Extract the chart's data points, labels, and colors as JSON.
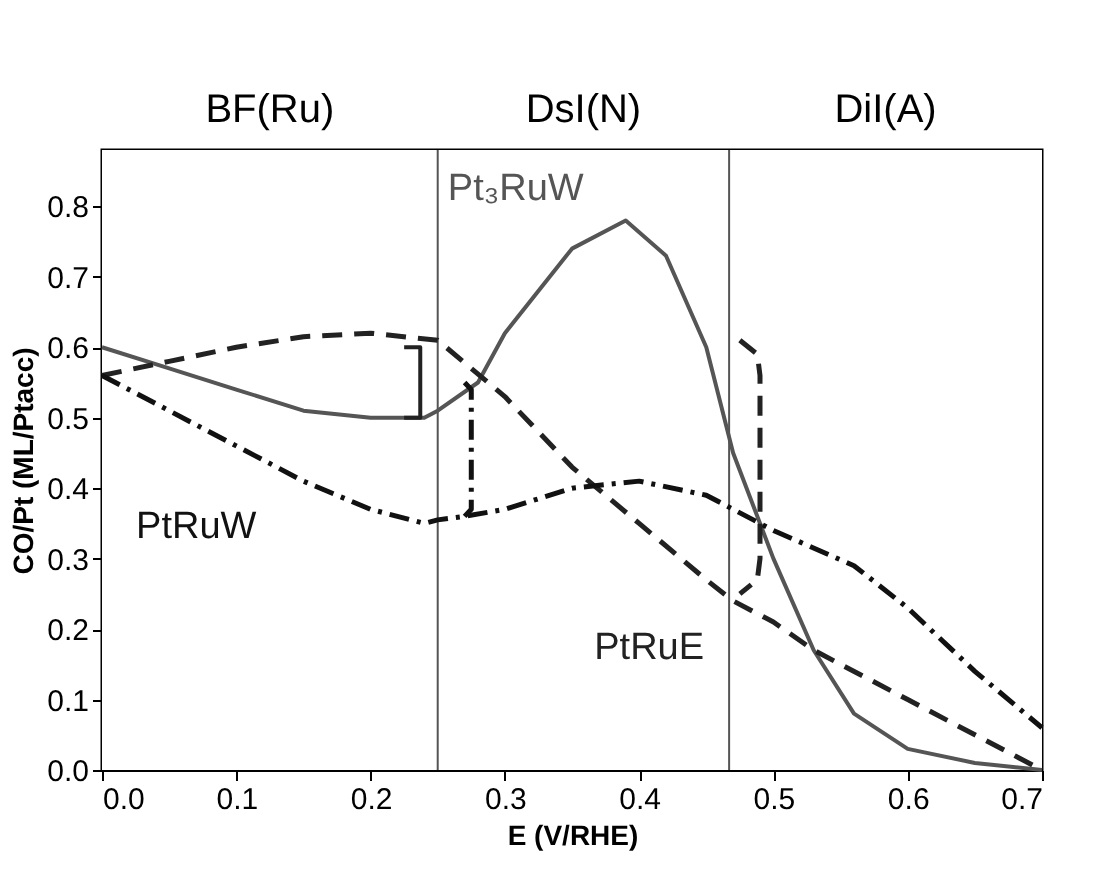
{
  "chart_data": {
    "type": "line",
    "xlabel": "E (V/RHE)",
    "ylabel": "CO/Pt (ML/Ptacc)",
    "xlim": [
      0,
      0.7
    ],
    "xticks": [
      {
        "value": 0,
        "label": "0.0"
      },
      0.1,
      0.2,
      0.3,
      0.4,
      0.5,
      0.6,
      0.7
    ],
    "ylim": [
      0,
      0.88
    ],
    "yticks": [
      {
        "value": 0,
        "label": "0.0"
      },
      0.1,
      0.2,
      0.3,
      0.4,
      0.5,
      0.6,
      0.7,
      0.8
    ],
    "grid": false,
    "marker": "none",
    "series": [
      {
        "name": "Pt₃RuW",
        "color": "#555555",
        "line_style": "solid",
        "x": [
          0,
          0.05,
          0.1,
          0.15,
          0.2,
          0.24,
          0.25,
          0.28,
          0.3,
          0.35,
          0.39,
          0.42,
          0.45,
          0.47,
          0.5,
          0.53,
          0.56,
          0.6,
          0.65,
          0.7
        ],
        "values": [
          0.6,
          0.57,
          0.54,
          0.51,
          0.5,
          0.5,
          0.51,
          0.55,
          0.62,
          0.74,
          0.78,
          0.73,
          0.6,
          0.45,
          0.3,
          0.17,
          0.08,
          0.03,
          0.01,
          0
        ]
      },
      {
        "name": "PtRuE",
        "color": "#222222",
        "line_style": "dashed",
        "x": [
          0,
          0.05,
          0.1,
          0.15,
          0.2,
          0.25,
          0.3,
          0.35,
          0.4,
          0.45,
          0.47,
          0.5,
          0.53,
          0.6,
          0.65,
          0.7
        ],
        "values": [
          0.56,
          0.58,
          0.6,
          0.615,
          0.62,
          0.61,
          0.53,
          0.43,
          0.35,
          0.27,
          0.24,
          0.21,
          0.17,
          0.1,
          0.05,
          0
        ]
      },
      {
        "name": "PtRuW",
        "color": "#111111",
        "line_style": "dashdot",
        "x": [
          0,
          0.05,
          0.1,
          0.15,
          0.2,
          0.24,
          0.25,
          0.27,
          0.3,
          0.35,
          0.4,
          0.45,
          0.5,
          0.56,
          0.6,
          0.65,
          0.7
        ],
        "values": [
          0.56,
          0.51,
          0.46,
          0.41,
          0.37,
          0.35,
          0.355,
          0.36,
          0.37,
          0.4,
          0.41,
          0.39,
          0.34,
          0.29,
          0.23,
          0.14,
          0.06
        ]
      },
      {
        "color": "#222222",
        "line_style": "solid",
        "x": [
          0.225,
          0.237,
          0.237,
          0.225
        ],
        "values": [
          0.6,
          0.6,
          0.5,
          0.5
        ]
      },
      {
        "color": "#222222",
        "line_style": "dashed",
        "x": [
          0.475,
          0.488,
          0.49,
          0.49,
          0.488,
          0.475
        ],
        "values": [
          0.61,
          0.59,
          0.56,
          0.3,
          0.27,
          0.25
        ]
      },
      {
        "color": "#111111",
        "line_style": "dashdot",
        "x": [
          0.27,
          0.275,
          0.275,
          0.27
        ],
        "values": [
          0.55,
          0.54,
          0.37,
          0.36
        ]
      }
    ],
    "ref_lines": [
      {
        "axis": "x",
        "value": 0.25,
        "color": "#555555"
      },
      {
        "axis": "x",
        "value": 0.467,
        "color": "#555555"
      }
    ],
    "bands": [
      {
        "axis": "x",
        "from": 0,
        "to": 0.25,
        "label": "BF(Ru)",
        "color": "#ffffff"
      },
      {
        "axis": "x",
        "from": 0.25,
        "to": 0.467,
        "label": "DsI(N)",
        "color": "#ffffff"
      },
      {
        "axis": "x",
        "from": 0.467,
        "to": 0.7,
        "label": "DiI(A)",
        "color": "#ffffff"
      }
    ]
  }
}
